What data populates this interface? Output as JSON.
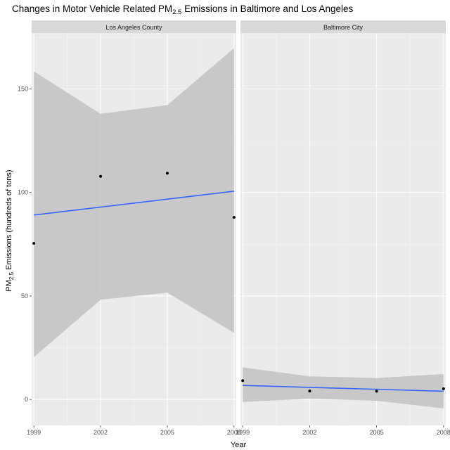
{
  "chart_data": {
    "type": "scatter",
    "title_prefix": "Changes in Motor Vehicle Related PM",
    "title_sub": "2.5",
    "title_suffix": " Emissions in Baltimore and Los Angeles",
    "xlabel": "Year",
    "ylabel_prefix": "PM",
    "ylabel_sub": "2.5",
    "ylabel_suffix": " Emissions (hundreds of tons)",
    "x_ticks": [
      1999,
      2002,
      2005,
      2008
    ],
    "y_ticks": [
      0,
      50,
      100,
      150
    ],
    "xlim": [
      1998.9,
      2008.1
    ],
    "ylim": [
      -12.5,
      177
    ],
    "grid": true,
    "panels": [
      {
        "strip": "Los Angeles County",
        "points": [
          {
            "x": 1999,
            "y": 75.4
          },
          {
            "x": 2002,
            "y": 107.8
          },
          {
            "x": 2005,
            "y": 109.3
          },
          {
            "x": 2008,
            "y": 88.0
          }
        ],
        "trend": {
          "x": [
            1999,
            2008
          ],
          "y": [
            89.1,
            100.6
          ]
        },
        "band": [
          {
            "x": 1999,
            "lower": 20.5,
            "upper": 158.5
          },
          {
            "x": 2002,
            "lower": 48.2,
            "upper": 138.0
          },
          {
            "x": 2005,
            "lower": 51.6,
            "upper": 142.2
          },
          {
            "x": 2008,
            "lower": 32.2,
            "upper": 169.7
          }
        ]
      },
      {
        "strip": "Baltimore City",
        "points": [
          {
            "x": 1999,
            "y": 9.1
          },
          {
            "x": 2002,
            "y": 4.1
          },
          {
            "x": 2005,
            "y": 4.0
          },
          {
            "x": 2008,
            "y": 5.2
          }
        ],
        "trend": {
          "x": [
            1999,
            2008
          ],
          "y": [
            6.8,
            4.0
          ]
        },
        "band": [
          {
            "x": 1999,
            "lower": -1.2,
            "upper": 15.5
          },
          {
            "x": 2002,
            "lower": 0.4,
            "upper": 11.2
          },
          {
            "x": 2005,
            "lower": -0.6,
            "upper": 10.4
          },
          {
            "x": 2008,
            "lower": -4.3,
            "upper": 12.3
          }
        ]
      }
    ],
    "colors": {
      "panel_bg": "#ebebeb",
      "grid_major": "#ffffff",
      "grid_minor": "#f5f5f5",
      "strip_bg": "#d9d9d9",
      "band": "#bfbfbf",
      "trend": "#3366ff",
      "point": "#000000"
    }
  }
}
